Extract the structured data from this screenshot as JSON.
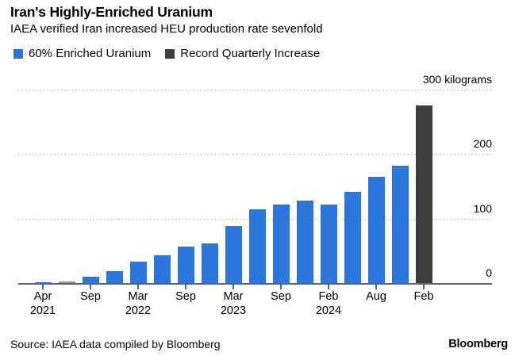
{
  "header": {
    "title": "Iran's Highly-Enriched Uranium",
    "subtitle": "IAEA verified Iran increased HEU production rate sevenfold"
  },
  "legend": {
    "items": [
      {
        "label": "60% Enriched Uranium",
        "color": "#2a76dd"
      },
      {
        "label": "Record Quarterly Increase",
        "color": "#3d3d3d"
      }
    ]
  },
  "chart_data": {
    "type": "bar",
    "title": "Iran's Highly-Enriched Uranium",
    "subtitle": "IAEA verified Iran increased HEU production rate sevenfold",
    "unit_label": "300 kilograms",
    "unit": "kilograms",
    "ylim": [
      0,
      300
    ],
    "grid": "horizontal-dotted",
    "legend_position": "top-left",
    "y_ticks": [
      {
        "label": "300 kilograms",
        "value": 300
      },
      {
        "label": "200",
        "value": 200
      },
      {
        "label": "100",
        "value": 100
      },
      {
        "label": "0",
        "value": 0
      }
    ],
    "x_ticks": [
      {
        "line1": "Apr",
        "line2": "2021"
      },
      {
        "line1": "Sep",
        "line2": ""
      },
      {
        "line1": "Mar",
        "line2": "2022"
      },
      {
        "line1": "Sep",
        "line2": ""
      },
      {
        "line1": "Mar",
        "line2": "2023"
      },
      {
        "line1": "Sep",
        "line2": ""
      },
      {
        "line1": "Feb",
        "line2": "2024"
      },
      {
        "line1": "Aug",
        "line2": ""
      },
      {
        "line1": "Feb",
        "line2": ""
      }
    ],
    "points": [
      {
        "tick_label": "Apr 2021",
        "value": 1,
        "series": "60% Enriched Uranium",
        "color": "blue"
      },
      {
        "tick_label": "",
        "value": 3,
        "series": "60% Enriched Uranium",
        "color": "gray"
      },
      {
        "tick_label": "Sep",
        "value": 10,
        "series": "60% Enriched Uranium",
        "color": "blue"
      },
      {
        "tick_label": "",
        "value": 18,
        "series": "60% Enriched Uranium",
        "color": "blue"
      },
      {
        "tick_label": "Mar 2022",
        "value": 33,
        "series": "60% Enriched Uranium",
        "color": "blue"
      },
      {
        "tick_label": "",
        "value": 43,
        "series": "60% Enriched Uranium",
        "color": "blue"
      },
      {
        "tick_label": "Sep",
        "value": 56,
        "series": "60% Enriched Uranium",
        "color": "blue"
      },
      {
        "tick_label": "",
        "value": 62,
        "series": "60% Enriched Uranium",
        "color": "blue"
      },
      {
        "tick_label": "Mar 2023",
        "value": 88,
        "series": "60% Enriched Uranium",
        "color": "blue"
      },
      {
        "tick_label": "",
        "value": 114,
        "series": "60% Enriched Uranium",
        "color": "blue"
      },
      {
        "tick_label": "Sep",
        "value": 122,
        "series": "60% Enriched Uranium",
        "color": "blue"
      },
      {
        "tick_label": "",
        "value": 128,
        "series": "60% Enriched Uranium",
        "color": "blue"
      },
      {
        "tick_label": "Feb 2024",
        "value": 122,
        "series": "60% Enriched Uranium",
        "color": "blue"
      },
      {
        "tick_label": "",
        "value": 142,
        "series": "60% Enriched Uranium",
        "color": "blue"
      },
      {
        "tick_label": "Aug",
        "value": 165,
        "series": "60% Enriched Uranium",
        "color": "blue"
      },
      {
        "tick_label": "",
        "value": 182,
        "series": "60% Enriched Uranium",
        "color": "blue"
      },
      {
        "tick_label": "Feb",
        "value": 275,
        "series": "Record Quarterly Increase",
        "color": "dark"
      }
    ],
    "colors": {
      "blue": "#2a76dd",
      "dark": "#3d3d3d",
      "gray": "#9a9a9a",
      "gridline": "#c4c4c4",
      "axis": "#636363"
    }
  },
  "footer": {
    "source": "Source: IAEA data compiled by Bloomberg",
    "logo": "Bloomberg"
  }
}
